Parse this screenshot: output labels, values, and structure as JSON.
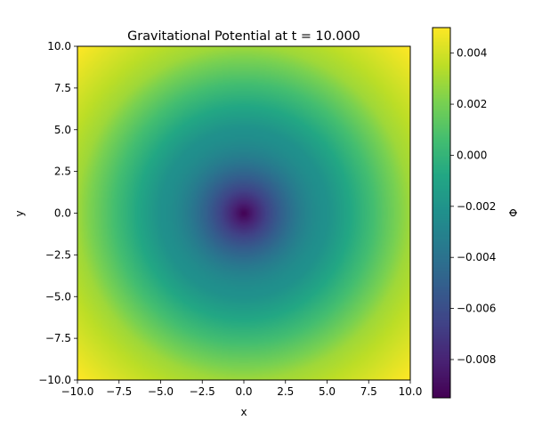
{
  "chart_data": {
    "type": "heatmap",
    "title": "Gravitational Potential at t = 10.000",
    "xlabel": "x",
    "ylabel": "y",
    "xlim": [
      -10,
      10
    ],
    "ylim": [
      -10,
      10
    ],
    "x_ticks": [
      -10.0,
      -7.5,
      -5.0,
      -2.5,
      0.0,
      2.5,
      5.0,
      7.5,
      10.0
    ],
    "y_ticks": [
      -10.0,
      -7.5,
      -5.0,
      -2.5,
      0.0,
      2.5,
      5.0,
      7.5,
      10.0
    ],
    "x_tick_labels": [
      "−10.0",
      "−7.5",
      "−5.0",
      "−2.5",
      "0.0",
      "2.5",
      "5.0",
      "7.5",
      "10.0"
    ],
    "y_tick_labels": [
      "−10.0",
      "−7.5",
      "−5.0",
      "−2.5",
      "0.0",
      "2.5",
      "5.0",
      "7.5",
      "10.0"
    ],
    "colormap": "viridis",
    "colorbar": {
      "label": "Φ",
      "vmin": -0.0095,
      "vmax": 0.005,
      "ticks": [
        -0.008,
        -0.006,
        -0.004,
        -0.002,
        0.0,
        0.002,
        0.004
      ],
      "tick_labels": [
        "−0.008",
        "−0.006",
        "−0.004",
        "−0.002",
        "0.000",
        "0.002",
        "0.004"
      ]
    },
    "field": {
      "center": [
        0.0,
        0.0
      ],
      "min_value_at_center": -0.0095,
      "value_at_r5": -0.0022,
      "value_at_r10": 0.0029,
      "value_at_r14": 0.005
    }
  }
}
